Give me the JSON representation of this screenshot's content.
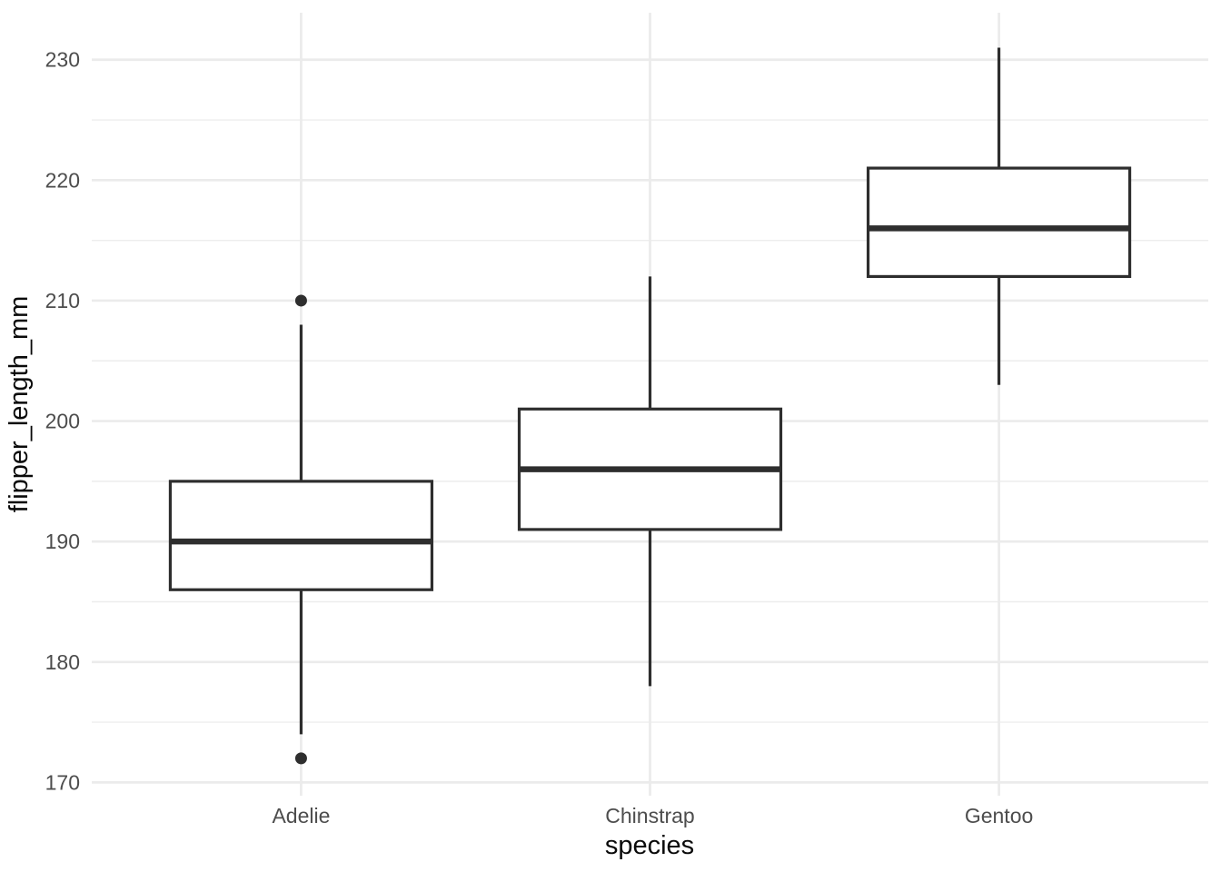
{
  "chart_data": {
    "type": "boxplot",
    "title": "",
    "xlabel": "species",
    "ylabel": "flipper_length_mm",
    "categories": [
      "Adelie",
      "Chinstrap",
      "Gentoo"
    ],
    "series": [
      {
        "category": "Adelie",
        "whisker_low": 174,
        "q1": 186,
        "median": 190,
        "q3": 195,
        "whisker_high": 208,
        "outliers": [
          210,
          172
        ]
      },
      {
        "category": "Chinstrap",
        "whisker_low": 178,
        "q1": 191,
        "median": 196,
        "q3": 201,
        "whisker_high": 212,
        "outliers": []
      },
      {
        "category": "Gentoo",
        "whisker_low": 203,
        "q1": 212,
        "median": 216,
        "q3": 221,
        "whisker_high": 231,
        "outliers": []
      }
    ],
    "y_ticks": [
      170,
      180,
      190,
      200,
      210,
      220,
      230
    ],
    "y_minor_ticks": [
      175,
      185,
      195,
      205,
      215,
      225
    ],
    "ylim": [
      168.9,
      233.9
    ],
    "grid": true,
    "legend": "none",
    "colors": {
      "background": "#ffffff",
      "grid_major": "#ebebeb",
      "grid_minor": "#ededed",
      "box_stroke": "#2e2e2e",
      "box_fill": "#ffffff",
      "outlier_fill": "#2e2e2e",
      "tick_label": "#4d4d4d",
      "axis_title": "#0a0a0a"
    }
  }
}
